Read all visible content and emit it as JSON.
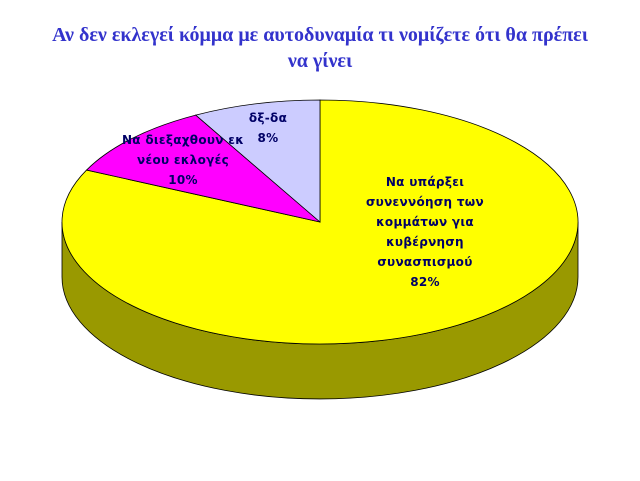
{
  "chart_data": {
    "type": "pie",
    "title": "Αν δεν εκλεγεί κόμμα με αυτοδυναμία τι νομίζετε ότι θα πρέπει να γίνει",
    "categories": [
      "Να υπάρξει συνεννόηση των κομμάτων για κυβέρνηση συνασπισμού",
      "Να διεξαχθουν εκ νέου εκλογές",
      "δξ-δα"
    ],
    "values": [
      82,
      10,
      8
    ],
    "value_labels": [
      "82%",
      "10%",
      "8%"
    ],
    "colors": [
      "#ffff00",
      "#ff00ff",
      "#ccccff"
    ]
  }
}
